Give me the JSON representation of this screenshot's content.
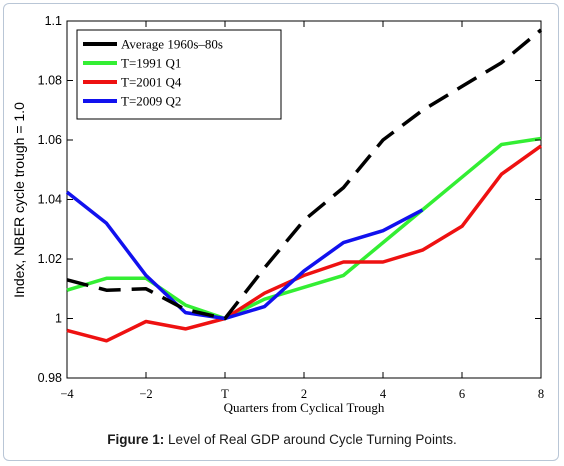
{
  "chart_data": {
    "type": "line",
    "title": "",
    "xlabel": "Quarters from Cyclical Trough",
    "ylabel": "Index, NBER cycle trough = 1.0",
    "xlim": [
      -4,
      8
    ],
    "ylim": [
      0.98,
      1.1
    ],
    "xticks": [
      -4,
      -2,
      0,
      2,
      4,
      6,
      8
    ],
    "xtick_labels": [
      "−4",
      "−2",
      "T",
      "2",
      "4",
      "6",
      "8"
    ],
    "yticks": [
      0.98,
      1.0,
      1.02,
      1.04,
      1.06,
      1.08,
      1.1
    ],
    "ytick_labels": [
      "0.98",
      "1",
      "1.02",
      "1.04",
      "1.06",
      "1.08",
      "1.1"
    ],
    "grid": false,
    "legend_position": "top-left",
    "series": [
      {
        "name": "Average 1960s–80s",
        "color": "#000000",
        "style": "dashed",
        "x": [
          -4,
          -3,
          -2,
          -1,
          0,
          1,
          2,
          3,
          4,
          5,
          6,
          7,
          8
        ],
        "y": [
          1.013,
          1.0095,
          1.01,
          1.003,
          1.0,
          1.017,
          1.033,
          1.044,
          1.06,
          1.07,
          1.078,
          1.086,
          1.097
        ]
      },
      {
        "name": "T=1991 Q1",
        "color": "#33ee33",
        "style": "solid",
        "x": [
          -4,
          -3,
          -2,
          -1,
          0,
          1,
          2,
          3,
          4,
          5,
          6,
          7,
          8
        ],
        "y": [
          1.0095,
          1.0135,
          1.0135,
          1.0045,
          1.0,
          1.0065,
          1.0105,
          1.0145,
          1.0255,
          1.0365,
          1.0475,
          1.0585,
          1.0605
        ]
      },
      {
        "name": "T=2001 Q4",
        "color": "#ee1111",
        "style": "solid",
        "x": [
          -4,
          -3,
          -2,
          -1,
          0,
          1,
          2,
          3,
          4,
          5,
          6,
          7,
          8
        ],
        "y": [
          0.996,
          0.9925,
          0.999,
          0.9965,
          1.0,
          1.0085,
          1.0145,
          1.019,
          1.019,
          1.023,
          1.031,
          1.0485,
          1.058
        ]
      },
      {
        "name": "T=2009 Q2",
        "color": "#1111ee",
        "style": "solid",
        "x": [
          -4,
          -3,
          -2,
          -1,
          0,
          1,
          2,
          3,
          4,
          5
        ],
        "y": [
          1.0425,
          1.032,
          1.0145,
          1.002,
          1.0,
          1.004,
          1.016,
          1.0255,
          1.0295,
          1.0365
        ]
      }
    ]
  },
  "caption": {
    "label": "Figure 1:",
    "text": " Level of Real GDP around Cycle Turning Points."
  }
}
